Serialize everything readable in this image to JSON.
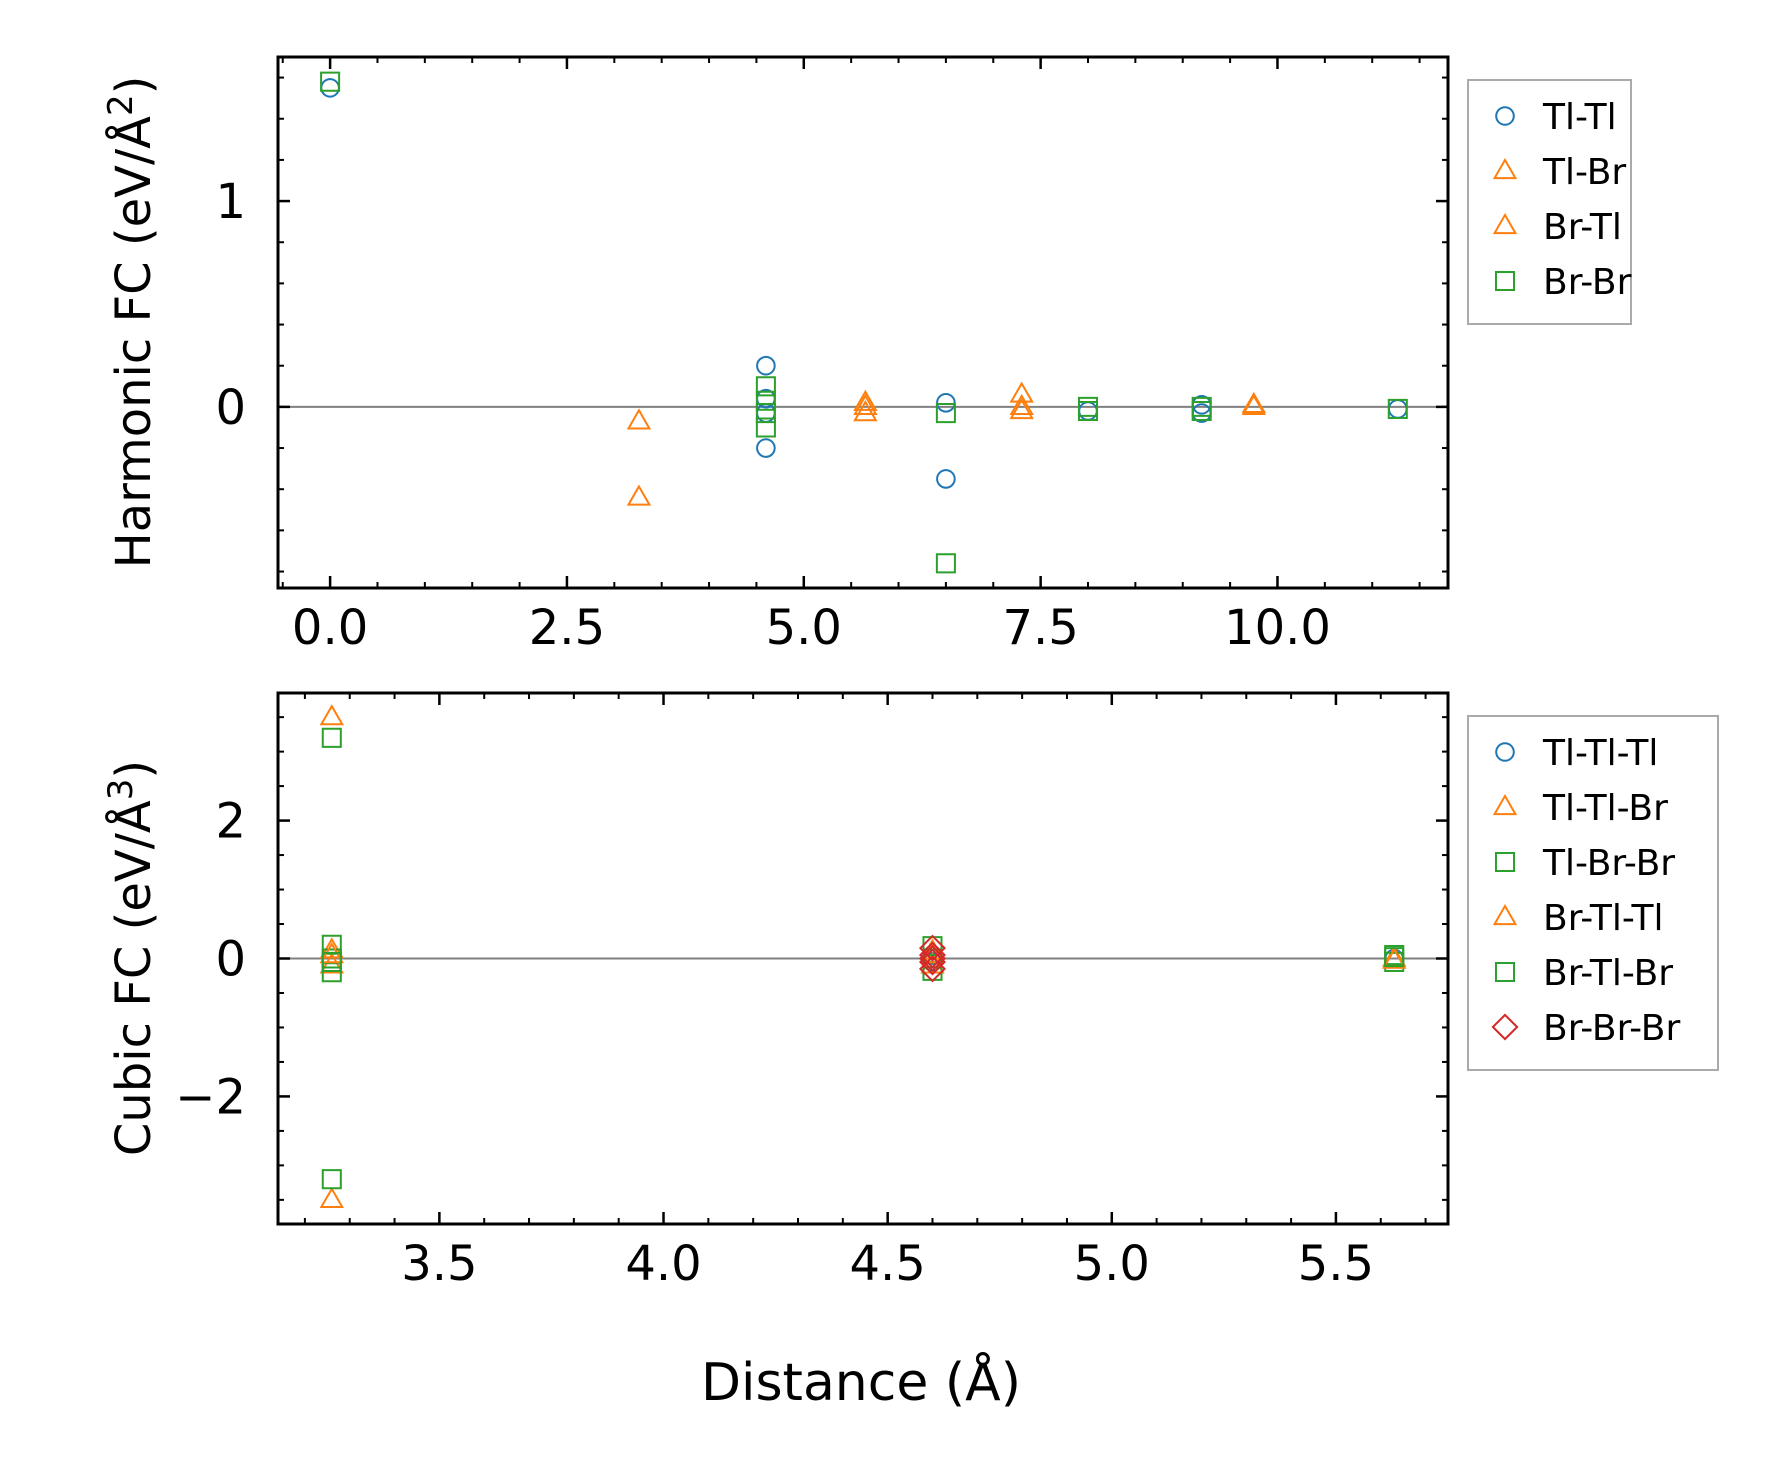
{
  "colors": {
    "blue": "#1f77b4",
    "orange": "#ff7f0e",
    "green": "#2ca02c",
    "red": "#d62728",
    "zero_line": "#808080",
    "legend_border": "#aaaaaa"
  },
  "chart_data": [
    {
      "type": "scatter",
      "ylabel": "Harmonic FC (eV/Å",
      "ylabel_sup": "2",
      "ylabel_close": ")",
      "xlabel": "",
      "xlim": [
        -0.55,
        11.8
      ],
      "ylim": [
        -0.88,
        1.7
      ],
      "xticks": [
        0,
        2.5,
        5,
        7.5,
        10
      ],
      "xtick_labels": [
        "0.0",
        "2.5",
        "5.0",
        "7.5",
        "10.0"
      ],
      "yticks": [
        0,
        1
      ],
      "ytick_labels": [
        "0",
        "1"
      ],
      "x_minor_step": 0.5,
      "y_minor_step": 0.2,
      "zero_line": true,
      "legend_position": "outside-right-top",
      "series": [
        {
          "name": "Tl-Tl",
          "marker": "circle",
          "color": "#1f77b4",
          "points": [
            [
              0,
              1.55
            ],
            [
              4.6,
              0.2
            ],
            [
              4.6,
              0.04
            ],
            [
              4.6,
              -0.03
            ],
            [
              4.6,
              -0.2
            ],
            [
              6.5,
              0.02
            ],
            [
              6.5,
              -0.35
            ],
            [
              8.0,
              -0.02
            ],
            [
              9.2,
              0.01
            ],
            [
              9.2,
              -0.03
            ],
            [
              11.27,
              -0.01
            ]
          ]
        },
        {
          "name": "Tl-Br",
          "marker": "triangle",
          "color": "#ff7f0e",
          "points": [
            [
              3.26,
              -0.07
            ],
            [
              3.26,
              -0.44
            ],
            [
              5.65,
              0.02
            ],
            [
              5.65,
              -0.03
            ],
            [
              7.3,
              0.06
            ],
            [
              7.3,
              -0.02
            ],
            [
              9.75,
              0.01
            ]
          ]
        },
        {
          "name": "Br-Tl",
          "marker": "triangle",
          "color": "#ff7f0e",
          "points": [
            [
              5.65,
              0.0
            ],
            [
              7.3,
              0.0
            ],
            [
              9.75,
              0.0
            ]
          ]
        },
        {
          "name": "Br-Br",
          "marker": "square",
          "color": "#2ca02c",
          "points": [
            [
              0,
              1.58
            ],
            [
              4.6,
              0.1
            ],
            [
              4.6,
              0.03
            ],
            [
              4.6,
              -0.03
            ],
            [
              4.6,
              -0.1
            ],
            [
              6.5,
              -0.03
            ],
            [
              6.5,
              -0.76
            ],
            [
              8.0,
              0.0
            ],
            [
              8.0,
              -0.02
            ],
            [
              9.2,
              0.0
            ],
            [
              9.2,
              -0.02
            ],
            [
              11.27,
              -0.01
            ]
          ]
        }
      ]
    },
    {
      "type": "scatter",
      "ylabel": "Cubic FC (eV/Å",
      "ylabel_sup": "3",
      "ylabel_close": ")",
      "xlabel": "Distance (Å)",
      "xlim": [
        3.14,
        5.75
      ],
      "ylim": [
        -3.85,
        3.85
      ],
      "xticks": [
        3.5,
        4.0,
        4.5,
        5.0,
        5.5
      ],
      "xtick_labels": [
        "3.5",
        "4.0",
        "4.5",
        "5.0",
        "5.5"
      ],
      "yticks": [
        -2,
        0,
        2
      ],
      "ytick_labels": [
        "−2",
        "0",
        "2"
      ],
      "x_minor_step": 0.1,
      "y_minor_step": 0.5,
      "zero_line": true,
      "legend_position": "outside-right-top",
      "series": [
        {
          "name": "Tl-Tl-Tl",
          "marker": "circle",
          "color": "#1f77b4",
          "points": [
            [
              4.6,
              0.05
            ],
            [
              4.6,
              -0.05
            ],
            [
              5.63,
              0.0
            ]
          ]
        },
        {
          "name": "Tl-Tl-Br",
          "marker": "triangle",
          "color": "#ff7f0e",
          "points": [
            [
              3.26,
              3.5
            ],
            [
              3.26,
              0.12
            ],
            [
              3.26,
              -0.1
            ],
            [
              3.26,
              -3.5
            ],
            [
              4.6,
              0.1
            ],
            [
              4.6,
              -0.1
            ],
            [
              5.63,
              0.0
            ]
          ]
        },
        {
          "name": "Tl-Br-Br",
          "marker": "square",
          "color": "#2ca02c",
          "points": [
            [
              3.26,
              3.2
            ],
            [
              3.26,
              0.2
            ],
            [
              3.26,
              0.0
            ],
            [
              3.26,
              -0.2
            ],
            [
              3.26,
              -3.2
            ],
            [
              4.6,
              0.18
            ],
            [
              4.6,
              -0.18
            ],
            [
              5.63,
              0.05
            ],
            [
              5.63,
              -0.05
            ]
          ]
        },
        {
          "name": "Br-Tl-Tl",
          "marker": "triangle",
          "color": "#ff7f0e",
          "points": [
            [
              3.26,
              0.05
            ],
            [
              4.6,
              0.05
            ],
            [
              5.63,
              -0.03
            ]
          ]
        },
        {
          "name": "Br-Tl-Br",
          "marker": "square",
          "color": "#2ca02c",
          "points": [
            [
              3.26,
              -0.05
            ],
            [
              4.6,
              0.0
            ],
            [
              5.63,
              0.02
            ]
          ]
        },
        {
          "name": "Br-Br-Br",
          "marker": "diamond",
          "color": "#d62728",
          "points": [
            [
              4.6,
              0.15
            ],
            [
              4.6,
              0.05
            ],
            [
              4.6,
              0.0
            ],
            [
              4.6,
              -0.05
            ],
            [
              4.6,
              -0.15
            ]
          ]
        }
      ]
    }
  ]
}
